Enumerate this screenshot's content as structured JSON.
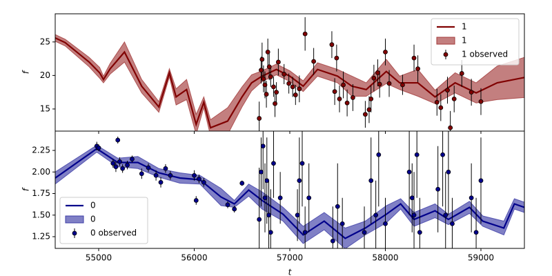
{
  "chart_data": [
    {
      "type": "line",
      "ylabel": "f",
      "xlim": [
        54545,
        59455
      ],
      "ylim": [
        11.7,
        29.2
      ],
      "yticks": [
        15,
        20,
        25
      ],
      "legend": "upper right",
      "series": [
        {
          "name": "1",
          "kind": "line",
          "color": "#800000",
          "x": [
            54545,
            54650,
            54900,
            55010,
            55050,
            55120,
            55270,
            55450,
            55630,
            55740,
            55810,
            55920,
            56020,
            56100,
            56170,
            56350,
            56500,
            56600,
            56710,
            56860,
            57000,
            57140,
            57290,
            57500,
            57650,
            57800,
            58010,
            58150,
            58340,
            58520,
            58730,
            58950,
            59170,
            59455
          ],
          "values": [
            25.6,
            24.9,
            22,
            20.4,
            19.4,
            21,
            23.5,
            18.4,
            15.3,
            20.4,
            16.8,
            17.9,
            12.7,
            16,
            12.2,
            13.2,
            16.8,
            18.9,
            19.9,
            20.9,
            19.9,
            18.4,
            20.9,
            19.9,
            18.4,
            17.9,
            20.6,
            18.9,
            18.9,
            16.8,
            18.9,
            17.4,
            18.9,
            19.7
          ]
        },
        {
          "name": "1",
          "kind": "band",
          "color": "#a33a3a",
          "x": [
            54545,
            54650,
            54900,
            55010,
            55050,
            55120,
            55270,
            55450,
            55630,
            55740,
            55810,
            55920,
            56020,
            56100,
            56170,
            56350,
            56500,
            56600,
            56710,
            56860,
            57000,
            57140,
            57290,
            57500,
            57650,
            57800,
            58010,
            58150,
            58340,
            58520,
            58730,
            58950,
            59170,
            59455
          ],
          "lower": [
            25.1,
            24.4,
            21.3,
            19.6,
            18.9,
            20.2,
            22,
            17.4,
            14.5,
            19.8,
            15.6,
            16.4,
            11.2,
            15.2,
            11,
            11.2,
            15.3,
            17.7,
            19.1,
            20.1,
            19.1,
            17.6,
            19.9,
            18.9,
            16.9,
            16.9,
            18.8,
            17.9,
            16.9,
            15.8,
            17.4,
            15.9,
            16.4,
            16.7
          ],
          "upper": [
            26.1,
            25.4,
            22.7,
            21.2,
            19.9,
            21.8,
            25,
            19.4,
            16.1,
            21,
            18,
            19.4,
            14.2,
            16.8,
            13.4,
            15.2,
            18.3,
            20.1,
            20.7,
            21.7,
            20.7,
            19.2,
            21.9,
            20.9,
            19.9,
            18.9,
            22.4,
            19.9,
            20.9,
            17.8,
            20.4,
            18.9,
            21.4,
            22.7
          ]
        },
        {
          "name": "1 observed",
          "kind": "errorbar",
          "color": "#800000",
          "x": [
            56680,
            56700,
            56710,
            56725,
            56740,
            56755,
            56770,
            56785,
            56800,
            56830,
            56845,
            56860,
            56880,
            56940,
            56990,
            57030,
            57060,
            57100,
            57160,
            57250,
            57440,
            57470,
            57490,
            57520,
            57560,
            57600,
            57660,
            57790,
            57830,
            57850,
            57880,
            57920,
            57940,
            58000,
            58040,
            58180,
            58300,
            58340,
            58540,
            58580,
            58650,
            58680,
            58720,
            58800,
            58900,
            59000
          ],
          "values": [
            13.6,
            20.8,
            22.4,
            19.5,
            18.6,
            17.2,
            23.5,
            21.3,
            19.8,
            18.3,
            15.8,
            17.5,
            22,
            20.2,
            18.8,
            18.3,
            17.1,
            18,
            26.2,
            22.1,
            24.6,
            17.6,
            22.6,
            16.5,
            18.6,
            15.9,
            16.7,
            14.2,
            14.9,
            16.5,
            19.6,
            20.4,
            18.7,
            23.5,
            18.8,
            18.6,
            22.6,
            21,
            16,
            15.2,
            17.8,
            12.2,
            16.5,
            20.3,
            17.5,
            16.1
          ],
          "errors": [
            2.5,
            2,
            2.5,
            2,
            2,
            2,
            2,
            2,
            1.5,
            1.5,
            2,
            1.5,
            2,
            1.5,
            1.5,
            1.5,
            1.5,
            2,
            2.5,
            2,
            2,
            2,
            2,
            2,
            2,
            2,
            2,
            2,
            2,
            2,
            2,
            2,
            2,
            2,
            2,
            1.5,
            2,
            2,
            2,
            2,
            2,
            2.5,
            2,
            2,
            2,
            2
          ]
        }
      ]
    },
    {
      "type": "line",
      "xlabel": "t",
      "ylabel": "f",
      "xlim": [
        54545,
        59455
      ],
      "ylim": [
        1.114,
        2.474
      ],
      "xticks": [
        55000,
        56000,
        57000,
        58000,
        59000
      ],
      "yticks": [
        1.25,
        {
          "value": 1.5,
          "label": "1.50"
        },
        1.75,
        {
          "value": 2,
          "label": "2.00"
        },
        2.25
      ],
      "legend": "lower left",
      "series": [
        {
          "name": "0",
          "kind": "line",
          "color": "#00008b",
          "x": [
            54545,
            54980,
            55200,
            55410,
            55630,
            55850,
            56060,
            56280,
            56420,
            56570,
            56710,
            56930,
            57140,
            57360,
            57580,
            57790,
            58010,
            58160,
            58300,
            58520,
            58660,
            58880,
            59020,
            59240,
            59350,
            59455
          ],
          "values": [
            1.93,
            2.27,
            2.11,
            2.11,
            1.99,
            1.93,
            1.91,
            1.71,
            1.63,
            1.79,
            1.67,
            1.51,
            1.27,
            1.43,
            1.23,
            1.35,
            1.51,
            1.63,
            1.45,
            1.55,
            1.45,
            1.59,
            1.43,
            1.35,
            1.63,
            1.59
          ]
        },
        {
          "name": "0",
          "kind": "band",
          "color": "#3c3ca6",
          "x": [
            54545,
            54980,
            55200,
            55410,
            55630,
            55850,
            56060,
            56280,
            56420,
            56570,
            56710,
            56930,
            57140,
            57360,
            57580,
            57790,
            58010,
            58160,
            58300,
            58520,
            58660,
            58880,
            59020,
            59240,
            59350,
            59455
          ],
          "lower": [
            1.86,
            2.23,
            2.06,
            2.04,
            1.94,
            1.87,
            1.86,
            1.61,
            1.59,
            1.72,
            1.57,
            1.43,
            1.17,
            1.33,
            1.11,
            1.27,
            1.41,
            1.57,
            1.37,
            1.47,
            1.39,
            1.52,
            1.37,
            1.27,
            1.57,
            1.53
          ],
          "upper": [
            2,
            2.31,
            2.16,
            2.18,
            2.04,
            1.99,
            1.96,
            1.81,
            1.67,
            1.86,
            1.77,
            1.59,
            1.37,
            1.53,
            1.35,
            1.43,
            1.61,
            1.69,
            1.53,
            1.63,
            1.51,
            1.66,
            1.49,
            1.43,
            1.69,
            1.65
          ]
        },
        {
          "name": "0 observed",
          "kind": "errorbar",
          "color": "#00008b",
          "x": [
            54980,
            55000,
            55150,
            55180,
            55200,
            55220,
            55250,
            55300,
            55350,
            55450,
            55520,
            55600,
            55650,
            55700,
            55750,
            56000,
            56020,
            56050,
            56100,
            56350,
            56420,
            56500,
            56680,
            56700,
            56720,
            56740,
            56760,
            56780,
            56800,
            56830,
            56900,
            57080,
            57100,
            57130,
            57160,
            57200,
            57450,
            57500,
            57550,
            57780,
            57850,
            57900,
            57930,
            58000,
            58250,
            58280,
            58300,
            58330,
            58360,
            58550,
            58600,
            58630,
            58660,
            58700,
            58900,
            58950,
            59000
          ],
          "values": [
            2.3,
            2.28,
            2.1,
            2.06,
            2.37,
            2.12,
            2.04,
            2.08,
            2.15,
            1.98,
            2.05,
            1.96,
            1.88,
            2.04,
            1.96,
            1.96,
            1.67,
            1.92,
            1.88,
            1.62,
            1.57,
            1.87,
            1.45,
            2,
            2.3,
            1.7,
            1.9,
            1.5,
            1.3,
            2.1,
            1.7,
            1.5,
            1.9,
            2.1,
            1.3,
            1.7,
            1.2,
            1.6,
            1.4,
            1.3,
            1.9,
            1.5,
            2.2,
            1.4,
            2,
            1.7,
            1.5,
            2.2,
            1.3,
            1.8,
            2.2,
            1.5,
            2,
            1.4,
            1.7,
            1.3,
            1.9
          ],
          "errors": [
            0.05,
            0.04,
            0.05,
            0.06,
            0.04,
            0.05,
            0.05,
            0.05,
            0.04,
            0.06,
            0.05,
            0.06,
            0.06,
            0.05,
            0.05,
            0.06,
            0.05,
            0.05,
            0.05,
            0.04,
            0.04,
            0.03,
            0.6,
            0.4,
            0.5,
            0.4,
            0.5,
            0.4,
            0.5,
            0.4,
            0.3,
            0.3,
            0.5,
            0.5,
            0.3,
            0.4,
            0.4,
            0.5,
            0.3,
            0.3,
            0.5,
            0.4,
            0.6,
            0.3,
            0.5,
            0.4,
            0.5,
            0.5,
            0.4,
            0.5,
            0.6,
            0.5,
            0.5,
            0.3,
            0.4,
            0.4,
            0.5
          ]
        }
      ]
    }
  ]
}
